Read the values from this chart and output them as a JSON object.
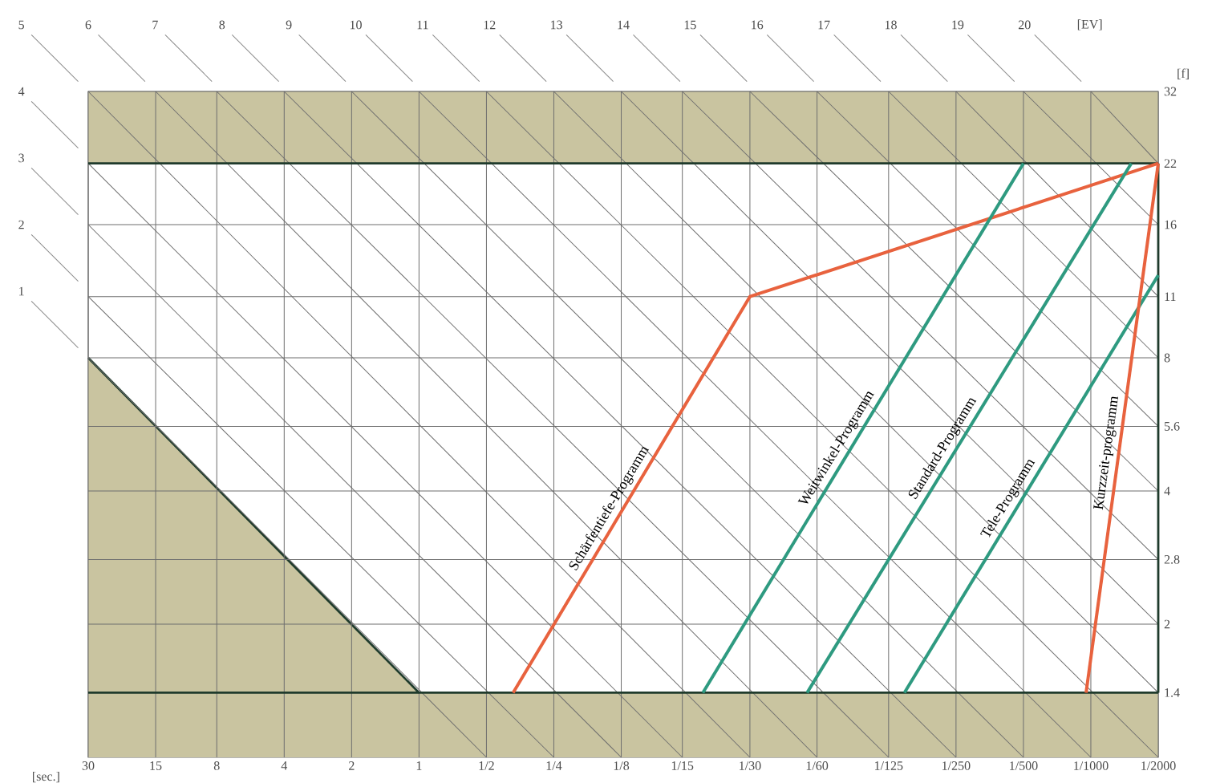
{
  "chart_data": {
    "type": "line",
    "xlabel": "[sec.]",
    "ylabel": "[f]",
    "x2label": "[EV]",
    "log": "xy",
    "xlim": [
      30,
      0.0005
    ],
    "xticks": [
      30,
      15,
      8,
      4,
      2,
      1,
      {
        "value": 0.5,
        "label": "1/2"
      },
      {
        "value": 0.25,
        "label": "1/4"
      },
      {
        "value": 0.125,
        "label": "1/8"
      },
      {
        "value": 0.0667,
        "label": "1/15"
      },
      {
        "value": 0.0333,
        "label": "1/30"
      },
      {
        "value": 0.0167,
        "label": "1/60"
      },
      {
        "value": 0.008,
        "label": "1/125"
      },
      {
        "value": 0.004,
        "label": "1/250"
      },
      {
        "value": 0.002,
        "label": "1/500"
      },
      {
        "value": 0.001,
        "label": "1/1000"
      },
      {
        "value": 0.0005,
        "label": "1/2000"
      }
    ],
    "ylim": [
      1,
      32
    ],
    "yticks": [
      1.4,
      2,
      2.8,
      4,
      5.6,
      8,
      11,
      16,
      22,
      32
    ],
    "x2lim": [
      6,
      22
    ],
    "x2ticks": [
      6,
      7,
      8,
      9,
      10,
      11,
      12,
      13,
      14,
      15,
      16,
      17,
      18,
      19,
      20
    ],
    "y2lim": [
      -6,
      4
    ],
    "y2ticks": [
      1,
      2,
      3,
      4
    ],
    "annotations": [
      "5"
    ],
    "grid": true,
    "bands": [
      {
        "axis": "y",
        "from": 22,
        "to": 32,
        "color": "#c9c4a0"
      },
      {
        "axis": "y",
        "from": 1,
        "to": 1.4,
        "color": "#c9c4a0"
      }
    ],
    "series": [
      {
        "type": "area",
        "color": "#c9c4a0",
        "x": [
          30,
          1
        ],
        "values": [
          8,
          1.4
        ]
      },
      {
        "color": "#6e6e6e",
        "x": [
          30,
          0.5
        ],
        "values": [
          8,
          1
        ]
      },
      {
        "color": "#6e6e6e",
        "x": [
          30,
          0.25
        ],
        "values": [
          11,
          1
        ]
      },
      {
        "color": "#6e6e6e",
        "x": [
          30,
          0.125
        ],
        "values": [
          16,
          1
        ]
      },
      {
        "color": "#6e6e6e",
        "x": [
          30,
          0.0667
        ],
        "values": [
          22,
          1
        ]
      },
      {
        "color": "#6e6e6e",
        "x": [
          30,
          0.0333
        ],
        "values": [
          32,
          1
        ]
      },
      {
        "color": "#6e6e6e",
        "x": [
          15,
          0.0167
        ],
        "values": [
          32,
          1
        ]
      },
      {
        "color": "#6e6e6e",
        "x": [
          8,
          0.008
        ],
        "values": [
          32,
          1
        ]
      },
      {
        "color": "#6e6e6e",
        "x": [
          4,
          0.004
        ],
        "values": [
          32,
          1
        ]
      },
      {
        "color": "#6e6e6e",
        "x": [
          2,
          0.002
        ],
        "values": [
          32,
          1
        ]
      },
      {
        "color": "#6e6e6e",
        "x": [
          1,
          0.001
        ],
        "values": [
          32,
          1
        ]
      },
      {
        "color": "#6e6e6e",
        "x": [
          0.5,
          0.0005
        ],
        "values": [
          32,
          1
        ]
      },
      {
        "color": "#6e6e6e",
        "x": [
          0.25,
          0.0005
        ],
        "values": [
          32,
          1.4
        ]
      },
      {
        "color": "#6e6e6e",
        "x": [
          0.125,
          0.0005
        ],
        "values": [
          32,
          2
        ]
      },
      {
        "color": "#6e6e6e",
        "x": [
          0.0667,
          0.0005
        ],
        "values": [
          32,
          2.8
        ]
      },
      {
        "color": "#6e6e6e",
        "x": [
          0.0333,
          0.0005
        ],
        "values": [
          32,
          4
        ]
      },
      {
        "color": "#6e6e6e",
        "x": [
          0.0167,
          0.0005
        ],
        "values": [
          32,
          5.6
        ]
      },
      {
        "color": "#6e6e6e",
        "x": [
          0.008,
          0.0005
        ],
        "values": [
          32,
          8
        ]
      },
      {
        "color": "#6e6e6e",
        "x": [
          0.004,
          0.0005
        ],
        "values": [
          32,
          11
        ]
      },
      {
        "color": "#6e6e6e",
        "x": [
          0.002,
          0.0005
        ],
        "values": [
          32,
          16
        ]
      },
      {
        "color": "#6e6e6e",
        "x": [
          0.001,
          0.0005
        ],
        "values": [
          32,
          22
        ]
      },
      {
        "name": "Schärfentiefe-Programm",
        "color": "#e8623e",
        "x": [
          0.38,
          0.0333,
          0.0005
        ],
        "values": [
          1.4,
          11,
          22
        ]
      },
      {
        "name": "Weitwinkel-Programm",
        "color": "#2e9a80",
        "x": [
          0.054,
          0.002
        ],
        "values": [
          1.4,
          22
        ]
      },
      {
        "name": "Standard-Programm",
        "color": "#2e9a80",
        "x": [
          0.0185,
          0.00066
        ],
        "values": [
          1.4,
          22
        ]
      },
      {
        "name": "Tele-Programm",
        "color": "#2e9a80",
        "x": [
          0.0068,
          0.0005
        ],
        "values": [
          1.4,
          12.3
        ]
      },
      {
        "name": "Kurzzeit-programm",
        "color": "#e8623e",
        "x": [
          0.00105,
          0.0005
        ],
        "values": [
          1.4,
          22
        ]
      }
    ]
  }
}
